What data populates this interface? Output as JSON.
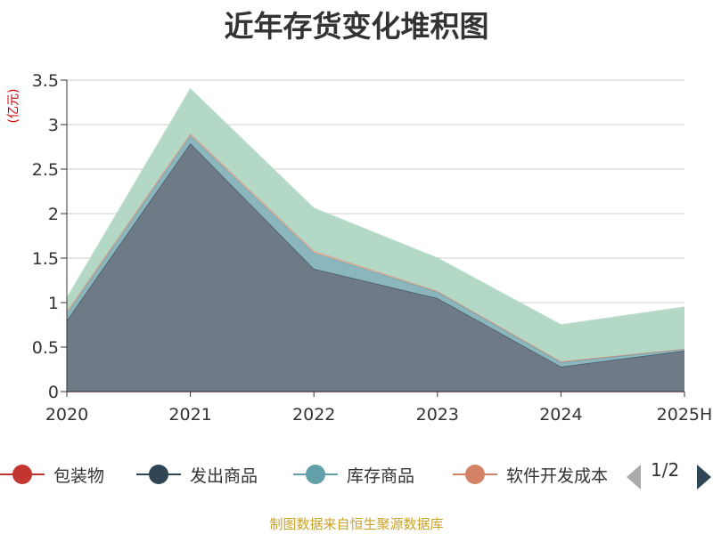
{
  "title": "近年存货变化堆积图",
  "unit_label": "(亿元)",
  "source_text": "制图数据来自恒生聚源数据库",
  "pager": {
    "text": "1/2"
  },
  "chart_data": {
    "type": "area",
    "stacked": true,
    "categories": [
      "2020",
      "2021",
      "2022",
      "2023",
      "2024",
      "2025H"
    ],
    "ylim": [
      0,
      3.5
    ],
    "yticks": [
      "0",
      "0.5",
      "1",
      "1.5",
      "2",
      "2.5",
      "3",
      "3.5"
    ],
    "grid": true,
    "legend_position": "bottom",
    "series": [
      {
        "name": "包装物",
        "values": [
          0.0,
          0.0,
          0.0,
          0.0,
          0.0,
          0.0
        ],
        "color": "#c23531",
        "fill": "#c23531"
      },
      {
        "name": "发出商品",
        "values": [
          0.8,
          2.79,
          1.38,
          1.05,
          0.28,
          0.46
        ],
        "color": "#2f4554",
        "fill": "#6e7b86"
      },
      {
        "name": "库存商品",
        "values": [
          0.08,
          0.09,
          0.18,
          0.07,
          0.05,
          0.02
        ],
        "color": "#61a0a8",
        "fill": "#8bb6bd"
      },
      {
        "name": "软件开发成本",
        "values": [
          0.02,
          0.02,
          0.02,
          0.01,
          0.01,
          0.0
        ],
        "color": "#d48265",
        "fill": "#e0b8a8"
      },
      {
        "name": "",
        "values": [
          0.15,
          0.5,
          0.48,
          0.37,
          0.41,
          0.47
        ],
        "color": "#b3d8c5",
        "fill": "#b3d8c5"
      }
    ]
  }
}
